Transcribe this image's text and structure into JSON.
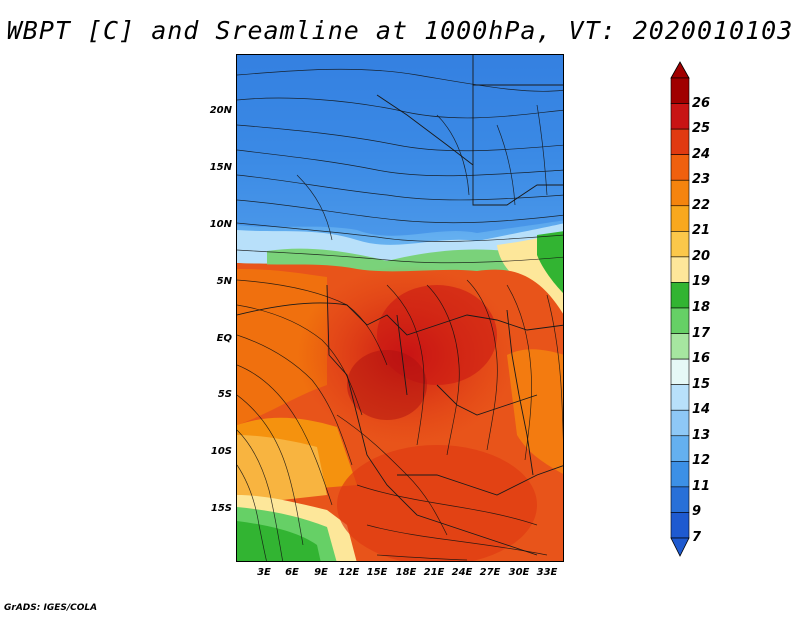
{
  "title": "WBPT [C] and Sreamline at 1000hPa, VT: 2020010103",
  "credit": "GrADS: IGES/COLA",
  "map": {
    "lat_labels": [
      "20N",
      "15N",
      "10N",
      "5N",
      "EQ",
      "5S",
      "10S",
      "15S"
    ],
    "lon_labels": [
      "3E",
      "6E",
      "9E",
      "12E",
      "15E",
      "18E",
      "21E",
      "24E",
      "27E",
      "30E",
      "33E"
    ]
  },
  "colorbar": {
    "labels": [
      "26",
      "25",
      "24",
      "23",
      "22",
      "21",
      "20",
      "19",
      "18",
      "17",
      "16",
      "15",
      "14",
      "13",
      "12",
      "11",
      "9",
      "7"
    ],
    "colors": [
      "#a00000",
      "#c81414",
      "#e03a12",
      "#f0600e",
      "#f5840e",
      "#f8a81e",
      "#fbc84a",
      "#fde79a",
      "#32b432",
      "#66d066",
      "#a6e6a0",
      "#e6f8f6",
      "#b8e0fa",
      "#8ec8f6",
      "#64b0f0",
      "#3c90e6",
      "#2870d8",
      "#1e5ad0"
    ]
  }
}
